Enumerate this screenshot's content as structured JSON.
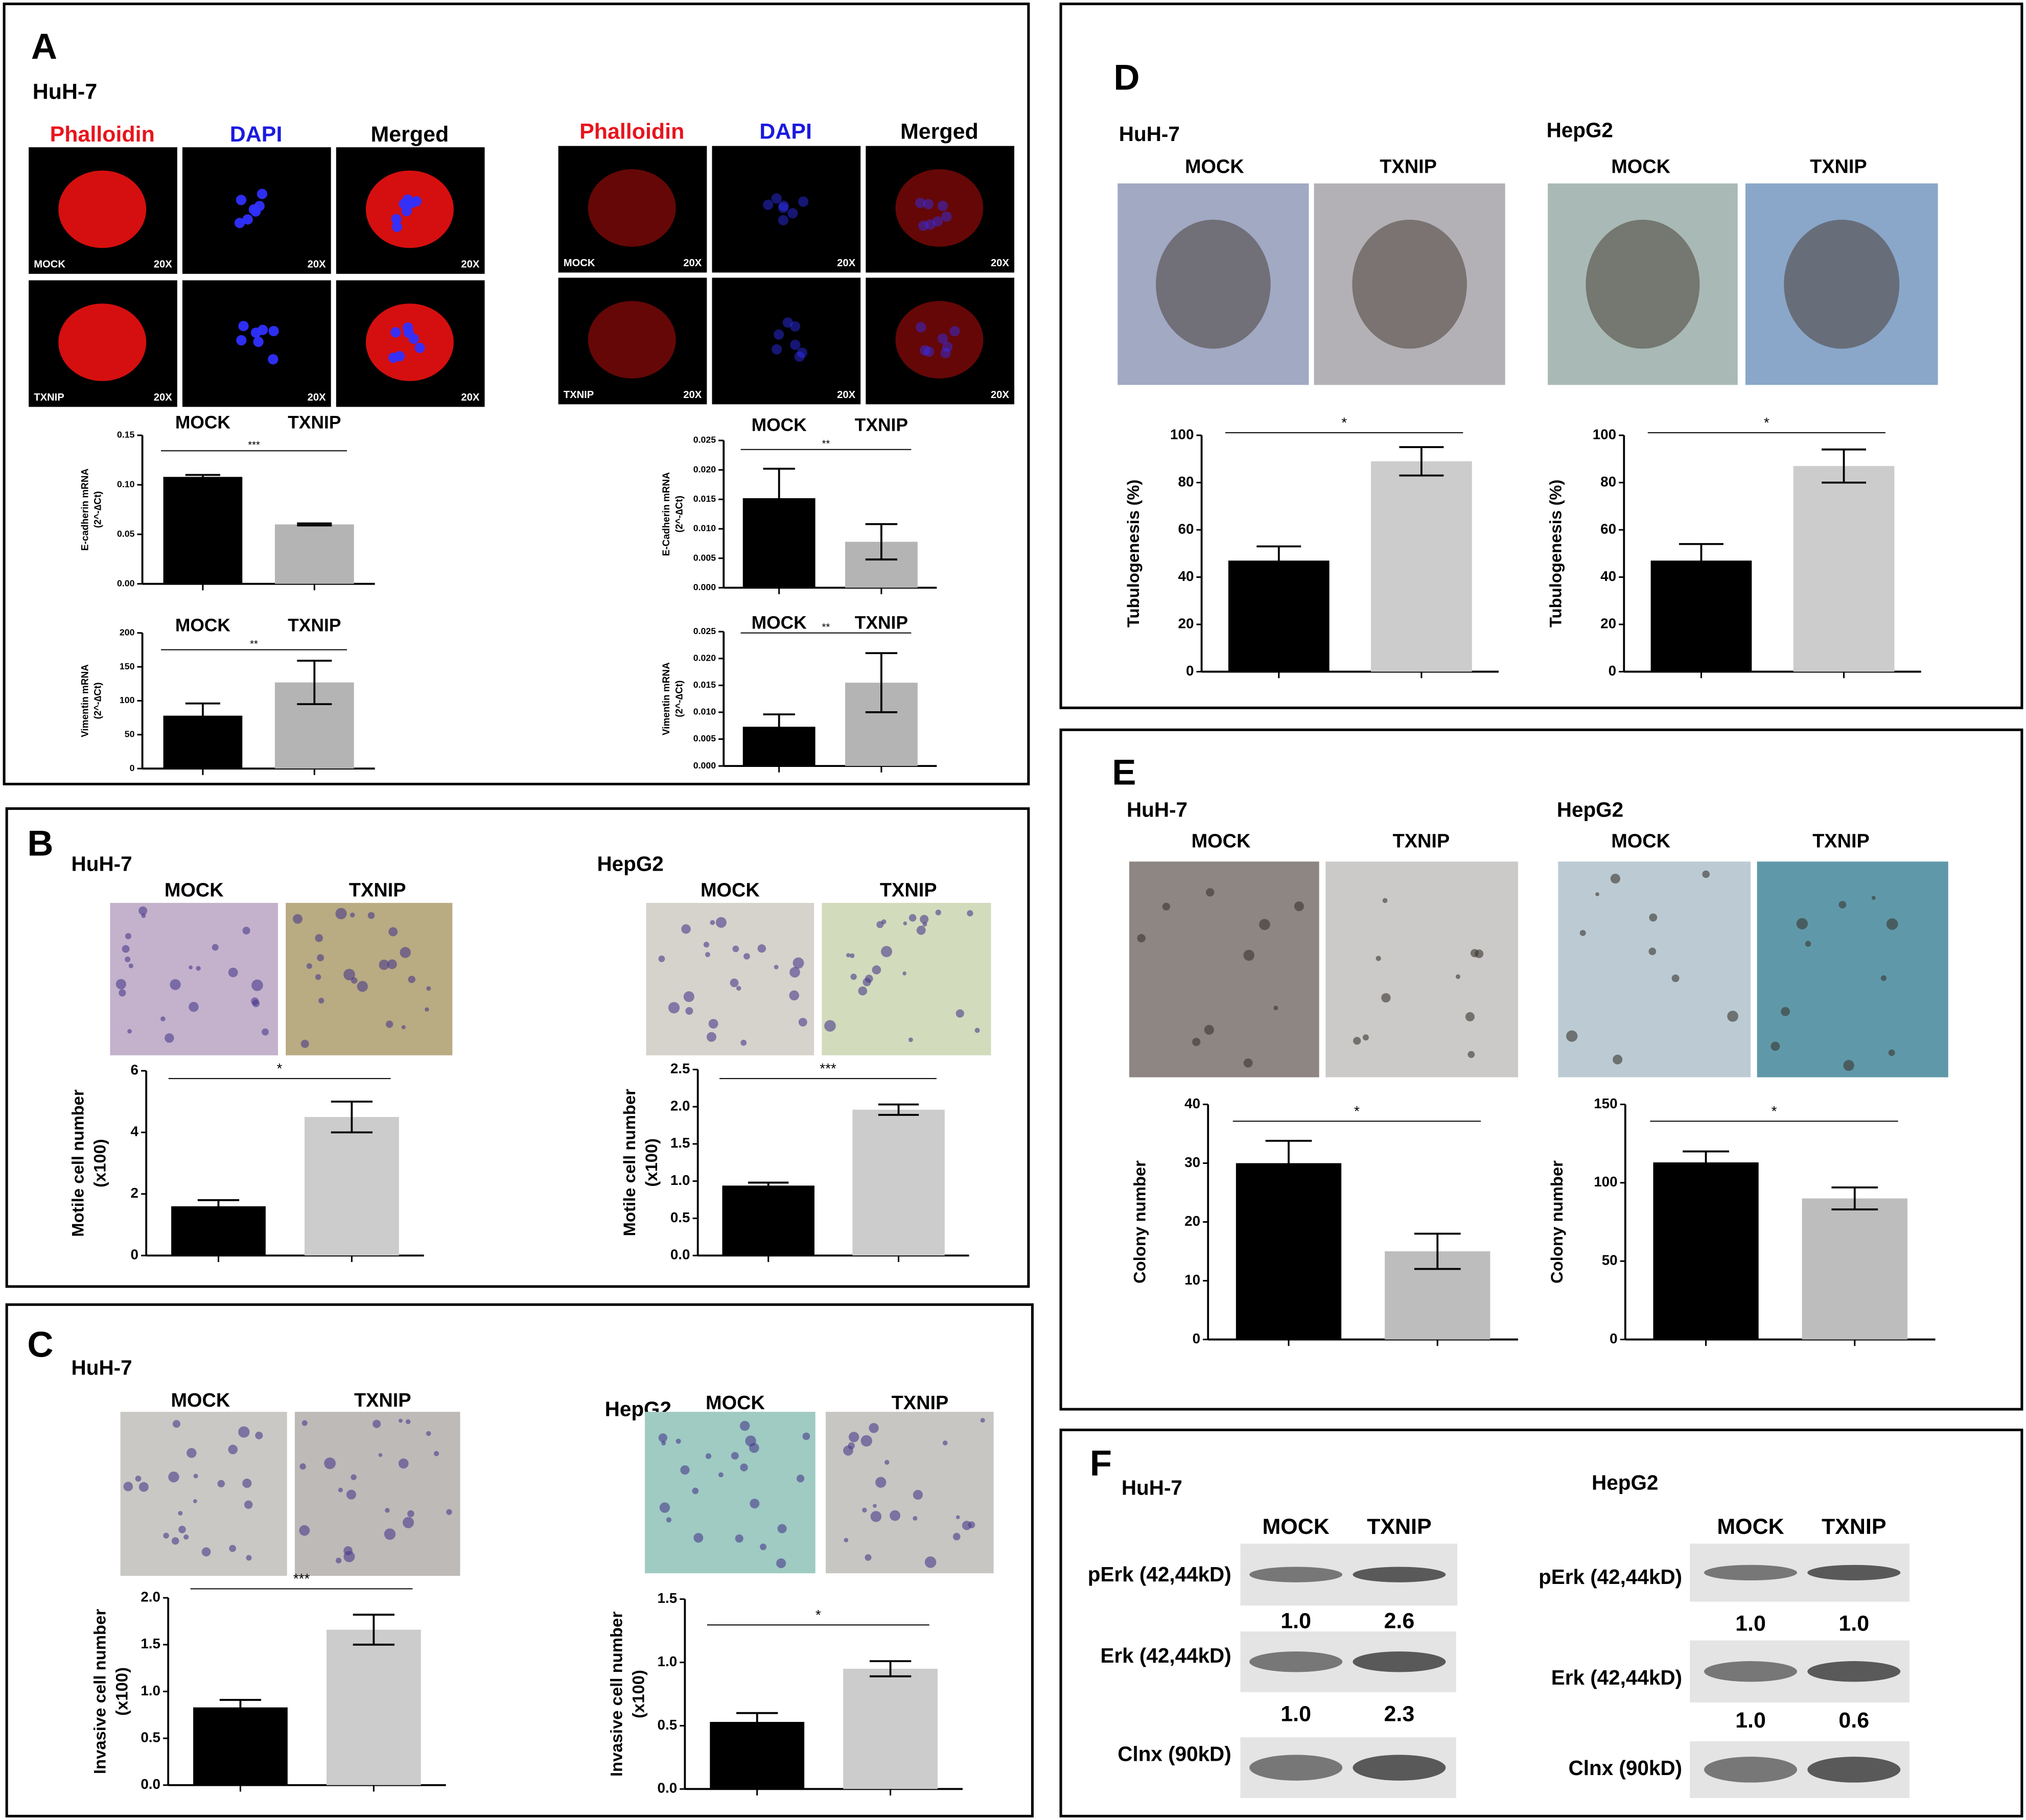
{
  "chart_data": [
    {
      "type": "bar",
      "categories": [
        "MOCK",
        "TXNIP"
      ],
      "ylabel": [
        "E-cadherin mRNA",
        "(2^-∆Ct)"
      ],
      "values": [
        0.108,
        0.06
      ],
      "errors": [
        0.002,
        0.001
      ],
      "colors": [
        "#000000",
        "#b4b4b4"
      ],
      "ylim": [
        0,
        0.15
      ],
      "yticks": [
        {
          "value": 0,
          "label": "0.00"
        },
        0.05,
        {
          "value": 0.1,
          "label": "0.10"
        },
        0.15
      ],
      "annotation": "***"
    },
    {
      "type": "bar",
      "categories": [
        "MOCK",
        "TXNIP"
      ],
      "ylabel": [
        "Vimentin mRNA",
        "(2^-∆Ct)"
      ],
      "values": [
        78,
        127
      ],
      "errors": [
        18,
        32
      ],
      "colors": [
        "#000000",
        "#b4b4b4"
      ],
      "ylim": [
        0,
        200
      ],
      "yticks": [
        0,
        50,
        100,
        150,
        200
      ],
      "annotation": "**"
    },
    {
      "type": "bar",
      "categories": [
        "MOCK",
        "TXNIP"
      ],
      "ylabel": [
        "E-Cadherin mRNA",
        "(2^-∆Ct)"
      ],
      "values": [
        0.0152,
        0.0078
      ],
      "errors": [
        0.005,
        0.003
      ],
      "colors": [
        "#000000",
        "#b4b4b4"
      ],
      "ylim": [
        0,
        0.025
      ],
      "yticks": [
        {
          "value": 0,
          "label": "0.000"
        },
        0.005,
        {
          "value": 0.01,
          "label": "0.010"
        },
        0.015,
        {
          "value": 0.02,
          "label": "0.020"
        },
        0.025
      ],
      "annotation": "**"
    },
    {
      "type": "bar",
      "categories": [
        "MOCK",
        "TXNIP"
      ],
      "ylabel": [
        "Vimentin mRNA",
        "(2^-∆Ct)"
      ],
      "values": [
        0.0073,
        0.0155
      ],
      "errors": [
        0.0023,
        0.0055
      ],
      "colors": [
        "#000000",
        "#b4b4b4"
      ],
      "ylim": [
        0,
        0.025
      ],
      "yticks": [
        {
          "value": 0,
          "label": "0.000"
        },
        0.005,
        {
          "value": 0.01,
          "label": "0.010"
        },
        0.015,
        {
          "value": 0.02,
          "label": "0.020"
        },
        0.025
      ],
      "annotation": "**"
    },
    {
      "type": "bar",
      "ylabel": [
        "Motile cell number",
        "(x100)"
      ],
      "values": [
        1.6,
        4.5
      ],
      "errors": [
        0.2,
        0.5
      ],
      "colors": [
        "#000000",
        "#cccccc"
      ],
      "ylim": [
        0,
        6
      ],
      "yticks": [
        0,
        2,
        4,
        6
      ],
      "annotation": "*"
    },
    {
      "type": "bar",
      "ylabel": [
        "Motile cell number",
        "(x100)"
      ],
      "values": [
        0.94,
        1.96
      ],
      "errors": [
        0.04,
        0.07
      ],
      "colors": [
        "#000000",
        "#cccccc"
      ],
      "ylim": [
        0,
        2.5
      ],
      "yticks": [
        {
          "value": 0,
          "label": "0.0"
        },
        0.5,
        {
          "value": 1,
          "label": "1.0"
        },
        1.5,
        {
          "value": 2,
          "label": "2.0"
        },
        2.5
      ],
      "annotation": "***"
    },
    {
      "type": "bar",
      "ylabel": [
        "Invasive cell number",
        "(x100)"
      ],
      "values": [
        0.83,
        1.66
      ],
      "errors": [
        0.08,
        0.16
      ],
      "colors": [
        "#000000",
        "#cccccc"
      ],
      "ylim": [
        0,
        2
      ],
      "yticks": [
        {
          "value": 0,
          "label": "0.0"
        },
        0.5,
        {
          "value": 1,
          "label": "1.0"
        },
        1.5,
        {
          "value": 2,
          "label": "2.0"
        }
      ],
      "annotation": "***"
    },
    {
      "type": "bar",
      "ylabel": [
        "Invasive cell number",
        "(x100)"
      ],
      "values": [
        0.53,
        0.95
      ],
      "errors": [
        0.07,
        0.06
      ],
      "colors": [
        "#000000",
        "#cccccc"
      ],
      "ylim": [
        0,
        1.5
      ],
      "yticks": [
        {
          "value": 0,
          "label": "0.0"
        },
        0.5,
        {
          "value": 1,
          "label": "1.0"
        },
        1.5
      ],
      "annotation": "*"
    },
    {
      "type": "bar",
      "ylabel": [
        "Tubulogenesis (%)"
      ],
      "values": [
        47,
        89
      ],
      "errors": [
        6,
        6
      ],
      "colors": [
        "#000000",
        "#cccccc"
      ],
      "ylim": [
        0,
        100
      ],
      "yticks": [
        0,
        20,
        40,
        60,
        80,
        100
      ],
      "annotation": "*"
    },
    {
      "type": "bar",
      "ylabel": [
        "Tubulogenesis (%)"
      ],
      "values": [
        47,
        87
      ],
      "errors": [
        7,
        7
      ],
      "colors": [
        "#000000",
        "#cccccc"
      ],
      "ylim": [
        0,
        100
      ],
      "yticks": [
        0,
        20,
        40,
        60,
        80,
        100
      ],
      "annotation": "*"
    },
    {
      "type": "bar",
      "ylabel": [
        "Colony number"
      ],
      "values": [
        30,
        15
      ],
      "errors": [
        3.8,
        3
      ],
      "colors": [
        "#000000",
        "#bdbdbd"
      ],
      "ylim": [
        0,
        40
      ],
      "yticks": [
        0,
        10,
        20,
        30,
        40
      ],
      "annotation": "*"
    },
    {
      "type": "bar",
      "ylabel": [
        "Colony number"
      ],
      "values": [
        113,
        90
      ],
      "errors": [
        7,
        7
      ],
      "colors": [
        "#000000",
        "#bdbdbd"
      ],
      "ylim": [
        0,
        150
      ],
      "yticks": [
        0,
        50,
        100,
        150
      ],
      "annotation": "*"
    }
  ],
  "panels": [
    {
      "label": "A",
      "groups": [
        {
          "cell_line": "HuH-7",
          "stains": [
            "Phalloidin",
            "DAPI",
            "Merged"
          ],
          "conditions": [
            "MOCK",
            "TXNIP"
          ],
          "magnification": "20X"
        },
        {
          "stains": [
            "Phalloidin",
            "DAPI",
            "Merged"
          ],
          "conditions": [
            "MOCK",
            "TXNIP"
          ],
          "magnification": "20X"
        }
      ]
    },
    {
      "label": "B",
      "groups": [
        {
          "cell_line": "HuH-7",
          "conditions": [
            "MOCK",
            "TXNIP"
          ]
        },
        {
          "cell_line": "HepG2",
          "conditions": [
            "MOCK",
            "TXNIP"
          ]
        }
      ]
    },
    {
      "label": "C",
      "groups": [
        {
          "cell_line": "HuH-7",
          "conditions": [
            "MOCK",
            "TXNIP"
          ]
        },
        {
          "cell_line": "HepG2",
          "conditions": [
            "MOCK",
            "TXNIP"
          ]
        }
      ]
    },
    {
      "label": "D",
      "groups": [
        {
          "cell_line": "HuH-7",
          "conditions": [
            "MOCK",
            "TXNIP"
          ]
        },
        {
          "cell_line": "HepG2",
          "conditions": [
            "MOCK",
            "TXNIP"
          ]
        }
      ]
    },
    {
      "label": "E",
      "groups": [
        {
          "cell_line": "HuH-7",
          "conditions": [
            "MOCK",
            "TXNIP"
          ]
        },
        {
          "cell_line": "HepG2",
          "conditions": [
            "MOCK",
            "TXNIP"
          ]
        }
      ]
    },
    {
      "label": "F",
      "groups": [
        {
          "cell_line": "HuH-7",
          "conditions": [
            "MOCK",
            "TXNIP"
          ],
          "blots": [
            {
              "name": "pErk (42,44kD)",
              "ratios": [
                "1.0",
                "2.6"
              ]
            },
            {
              "name": "Erk (42,44kD)",
              "ratios": [
                "1.0",
                "2.3"
              ]
            },
            {
              "name": "Clnx (90kD)"
            }
          ]
        },
        {
          "cell_line": "HepG2",
          "conditions": [
            "MOCK",
            "TXNIP"
          ],
          "blots": [
            {
              "name": "pErk (42,44kD)",
              "ratios": [
                "1.0",
                "1.0"
              ]
            },
            {
              "name": "Erk (42,44kD)",
              "ratios": [
                "1.0",
                "0.6"
              ]
            },
            {
              "name": "Clnx (90kD)"
            }
          ]
        }
      ]
    }
  ]
}
